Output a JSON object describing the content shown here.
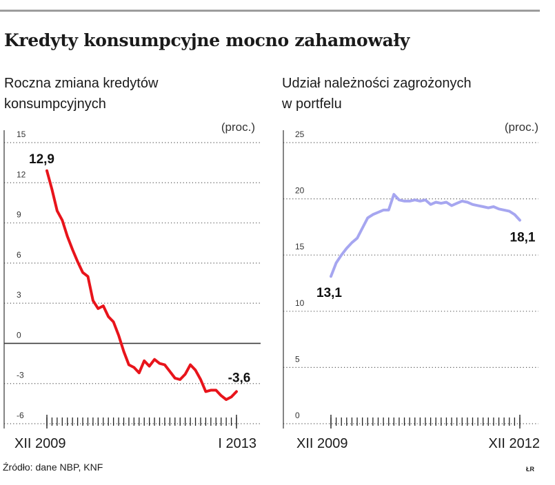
{
  "header": {
    "title": "Kredyty konsumpcyjne mocno zahamowały"
  },
  "footer": {
    "source": "Źródło: dane NBP, KNF",
    "credit": "ŁR"
  },
  "chart_data": [
    {
      "type": "line",
      "title": "Roczna zmiana kredytów konsumpcyjnych",
      "title_lines": [
        "Roczna zmiana kredytów",
        "konsumpcyjnych"
      ],
      "unit": "(proc.)",
      "ylim": [
        -6,
        15
      ],
      "yticks": [
        15,
        12,
        9,
        6,
        3,
        0,
        -3,
        -6
      ],
      "ytick_labels": [
        "15",
        "12",
        "9",
        "6",
        "3",
        "0",
        "-3",
        "-6"
      ],
      "xlim": [
        0,
        37
      ],
      "x_labels": [
        {
          "x": 0,
          "label": "XII 2009"
        },
        {
          "x": 37,
          "label": "I 2013"
        }
      ],
      "start_label": "12,9",
      "end_label": "-3,6",
      "grid": "horizontal dotted",
      "zero_line": true,
      "color": "#e8141b",
      "values": [
        12.9,
        11.5,
        9.9,
        9.2,
        8.0,
        7.0,
        6.1,
        5.3,
        5.0,
        3.2,
        2.6,
        2.8,
        2.0,
        1.6,
        0.6,
        -0.6,
        -1.6,
        -1.8,
        -2.2,
        -1.3,
        -1.7,
        -1.2,
        -1.5,
        -1.6,
        -2.1,
        -2.6,
        -2.7,
        -2.3,
        -1.6,
        -2.0,
        -2.7,
        -3.6,
        -3.5,
        -3.5,
        -3.9,
        -4.2,
        -4.0,
        -3.6
      ]
    },
    {
      "type": "line",
      "title": "Udział należności zagrożonych w portfelu",
      "title_lines": [
        "Udział należności zagrożonych",
        "w portfelu"
      ],
      "unit": "(proc.)",
      "ylim": [
        0,
        25
      ],
      "yticks": [
        25,
        20,
        15,
        10,
        5,
        0
      ],
      "ytick_labels": [
        "25",
        "20",
        "15",
        "10",
        "5",
        "0"
      ],
      "xlim": [
        0,
        36
      ],
      "x_labels": [
        {
          "x": 0,
          "label": "XII 2009"
        },
        {
          "x": 36,
          "label": "XII 2012"
        }
      ],
      "start_label": "13,1",
      "end_label": "18,1",
      "grid": "horizontal dotted",
      "color": "#a6a6f0",
      "values": [
        13.1,
        14.3,
        15.0,
        15.6,
        16.1,
        16.5,
        17.4,
        18.3,
        18.6,
        18.8,
        19.0,
        19.0,
        20.4,
        19.9,
        19.8,
        19.8,
        19.9,
        19.8,
        19.9,
        19.5,
        19.7,
        19.6,
        19.7,
        19.4,
        19.6,
        19.8,
        19.7,
        19.5,
        19.4,
        19.3,
        19.2,
        19.3,
        19.1,
        19.0,
        18.9,
        18.6,
        18.1
      ]
    }
  ]
}
